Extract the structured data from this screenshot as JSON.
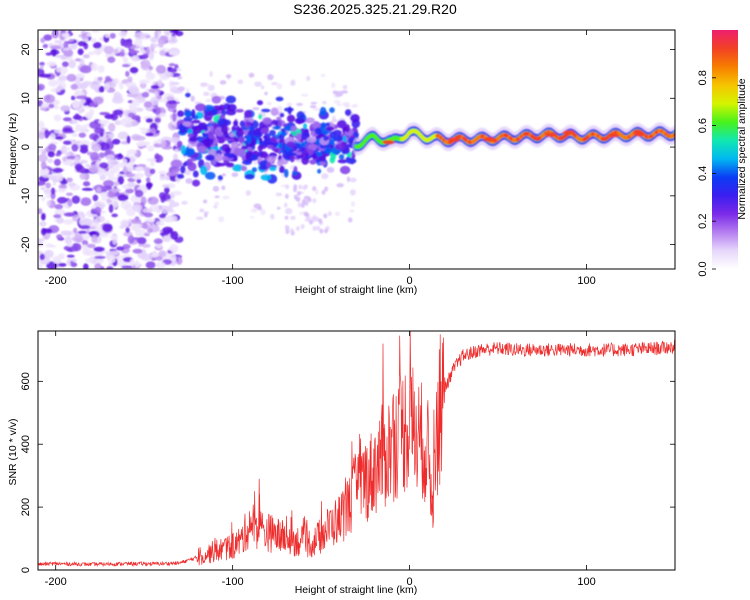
{
  "title": "S236.2025.325.21.29.R20",
  "chart_data": [
    {
      "type": "heatmap",
      "name": "spectrogram",
      "xlabel": "Height of straight line (km)",
      "ylabel": "Frequency (Hz)",
      "xlim": [
        -210,
        150
      ],
      "ylim": [
        -25,
        24
      ],
      "xticks": [
        -200,
        -100,
        0,
        100
      ],
      "yticks": [
        -20,
        -10,
        0,
        10,
        20
      ],
      "colorbar": {
        "label": "Normalized spectral amplitude",
        "range": [
          0,
          1
        ],
        "ticks": [
          0.0,
          0.2,
          0.4,
          0.6,
          0.8
        ],
        "tick_labels": [
          "0.0",
          "0.2",
          "0.4",
          "0.6",
          "0.8"
        ],
        "colormap": [
          "#ffffff",
          "#e6d7fb",
          "#b57ef0",
          "#7b2ae8",
          "#3b1ff0",
          "#0b3df5",
          "#00b8f0",
          "#10e8b0",
          "#49f21a",
          "#d5f400",
          "#f6c400",
          "#f77e00",
          "#f24124",
          "#ee1f6e"
        ]
      },
      "features": {
        "scatter_region_km": [
          -210,
          -130
        ],
        "cluster_region_km": [
          -130,
          -30
        ],
        "stable_line_region_km": [
          -30,
          150
        ],
        "line_frequency_hz": [
          {
            "x": -30,
            "f": 0.5
          },
          {
            "x": -20,
            "f": 2.0
          },
          {
            "x": -10,
            "f": 1.0
          },
          {
            "x": 0,
            "f": 3.0
          },
          {
            "x": 10,
            "f": 2.0
          },
          {
            "x": 20,
            "f": 1.5
          },
          {
            "x": 40,
            "f": 1.6
          },
          {
            "x": 60,
            "f": 2.0
          },
          {
            "x": 80,
            "f": 2.5
          },
          {
            "x": 100,
            "f": 2.0
          },
          {
            "x": 120,
            "f": 2.5
          },
          {
            "x": 150,
            "f": 2.8
          }
        ]
      }
    },
    {
      "type": "line",
      "name": "snr",
      "xlabel": "Height of straight line (km)",
      "ylabel": "SNR (10 * v/v)",
      "xlim": [
        -210,
        150
      ],
      "ylim": [
        0,
        760
      ],
      "xticks": [
        -200,
        -100,
        0,
        100
      ],
      "yticks": [
        0,
        200,
        400,
        600
      ],
      "color": "#ee2c2c",
      "x": [
        -210,
        -200,
        -180,
        -160,
        -140,
        -130,
        -120,
        -110,
        -100,
        -95,
        -90,
        -85,
        -80,
        -70,
        -60,
        -55,
        -50,
        -45,
        -40,
        -35,
        -30,
        -25,
        -22,
        -18,
        -15,
        -12,
        -10,
        -5,
        0,
        5,
        10,
        13,
        15,
        18,
        20,
        25,
        30,
        40,
        50,
        60,
        80,
        100,
        120,
        140,
        150
      ],
      "y": [
        18,
        20,
        18,
        20,
        20,
        22,
        40,
        60,
        75,
        95,
        150,
        130,
        120,
        100,
        90,
        85,
        110,
        140,
        160,
        200,
        260,
        290,
        300,
        340,
        360,
        380,
        400,
        440,
        470,
        420,
        390,
        220,
        420,
        520,
        580,
        640,
        680,
        700,
        705,
        700,
        700,
        700,
        700,
        705,
        710
      ],
      "annotations_peaks": [
        {
          "x": -15,
          "y": 720
        },
        {
          "x": 13,
          "y": 220
        },
        {
          "x": -85,
          "y": 290
        }
      ]
    }
  ]
}
